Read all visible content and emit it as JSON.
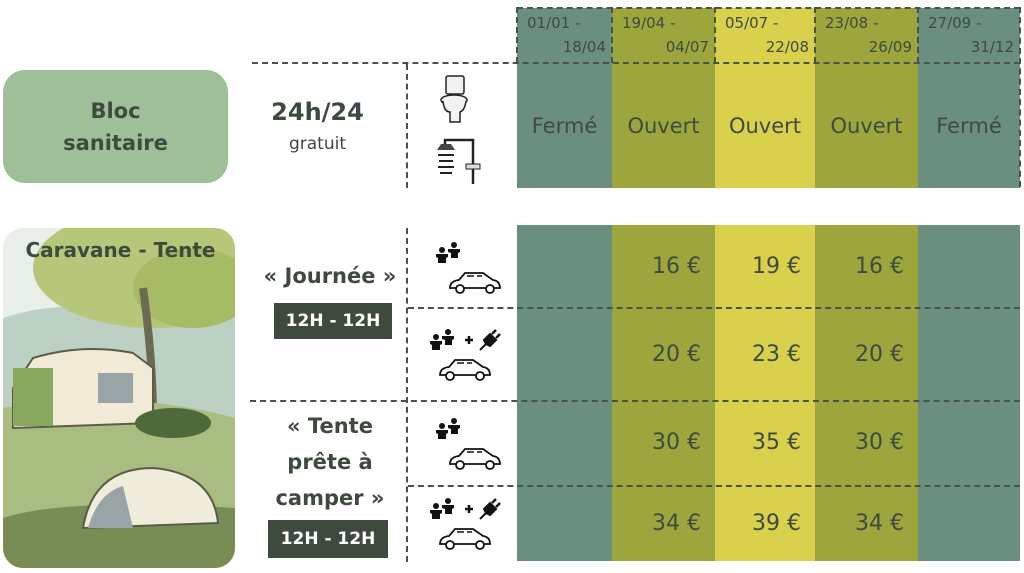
{
  "colors": {
    "closed": "#6a8f7f",
    "mid": "#9ca63c",
    "peak": "#d9d14c",
    "text": "#3f4a40",
    "dark": "#3f4a3e",
    "sanitary_box": "#9fbf98"
  },
  "periods": [
    {
      "line1": "01/01 -",
      "line2": "18/04"
    },
    {
      "line1": "19/04 -",
      "line2": "04/07"
    },
    {
      "line1": "05/07 -",
      "line2": "22/08"
    },
    {
      "line1": "23/08 -",
      "line2": "26/09"
    },
    {
      "line1": "27/09 -",
      "line2": "31/12"
    }
  ],
  "sanitary": {
    "title_line1": "Bloc",
    "title_line2": "sanitaire",
    "hours": "24h/24",
    "price": "gratuit",
    "icons": [
      "toilet-icon",
      "shower-icon"
    ],
    "status": [
      "Fermé",
      "Ouvert",
      "Ouvert",
      "Ouvert",
      "Fermé"
    ]
  },
  "camping": {
    "title": "Caravane - Tente",
    "journee": {
      "label": "« Journée »",
      "hours": "12H - 12H"
    },
    "tente": {
      "label_line1": "« Tente",
      "label_line2": "prête à",
      "label_line3": "camper »",
      "hours": "12H - 12H"
    },
    "rows": [
      {
        "icons": [
          "people-icon",
          "car-icon"
        ],
        "prices": [
          "",
          "16 €",
          "19 €",
          "16 €",
          ""
        ]
      },
      {
        "icons": [
          "people-icon",
          "plus-icon",
          "electric-plug-icon",
          "car-icon"
        ],
        "prices": [
          "",
          "20 €",
          "23 €",
          "20 €",
          ""
        ]
      },
      {
        "icons": [
          "people-icon",
          "car-icon"
        ],
        "prices": [
          "",
          "30 €",
          "35 €",
          "30 €",
          ""
        ]
      },
      {
        "icons": [
          "people-icon",
          "plus-icon",
          "electric-plug-icon",
          "car-icon"
        ],
        "prices": [
          "",
          "34 €",
          "39 €",
          "34 €",
          ""
        ]
      }
    ]
  }
}
